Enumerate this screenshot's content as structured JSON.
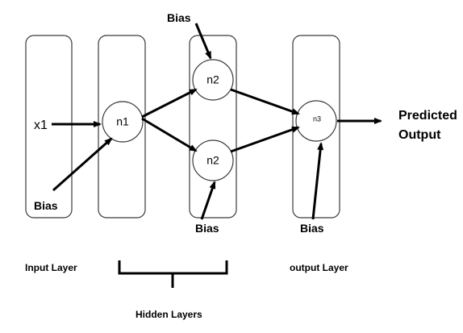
{
  "neurons": {
    "n1": "n1",
    "n2_top": "n2",
    "n2_bottom": "n2",
    "n3": "n3"
  },
  "input": {
    "x1": "x1"
  },
  "bias_labels": {
    "input_bias": "Bias",
    "hidden2_top_bias": "Bias",
    "hidden2_bottom_bias": "Bias",
    "output_bias": "Bias"
  },
  "output": {
    "line1": "Predicted",
    "line2": "Output"
  },
  "layer_labels": {
    "input_layer": "Input Layer",
    "hidden_layers": "Hidden Layers",
    "output_layer": "output Layer"
  }
}
